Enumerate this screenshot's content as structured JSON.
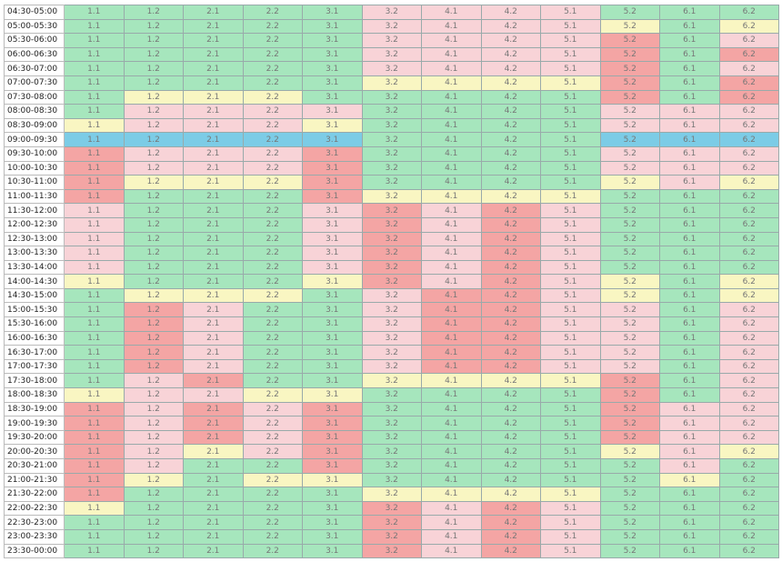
{
  "columns": [
    "1.1",
    "1.2",
    "2.1",
    "2.2",
    "3.1",
    "3.2",
    "4.1",
    "4.2",
    "5.1",
    "5.2",
    "6.1",
    "6.2"
  ],
  "palette": {
    "G": "#a6e6bd",
    "P": "#f8d3d7",
    "R": "#f4a5a4",
    "Y": "#f9f6c2",
    "B": "#7ccce6"
  },
  "rows": [
    {
      "time": "04:30-05:00",
      "cells": "GGGGGPPPPGGG"
    },
    {
      "time": "05:00-05:30",
      "cells": "GGGGGPPPPYGY"
    },
    {
      "time": "05:30-06:00",
      "cells": "GGGGGPPPPRGP"
    },
    {
      "time": "06:00-06:30",
      "cells": "GGGGGPPPPRGR"
    },
    {
      "time": "06:30-07:00",
      "cells": "GGGGGPPPPRGP"
    },
    {
      "time": "07:00-07:30",
      "cells": "GGGGGYYYYRGR"
    },
    {
      "time": "07:30-08:00",
      "cells": "GYYYGGGGGRGR"
    },
    {
      "time": "08:00-08:30",
      "cells": "GPPPPGGGGPPP"
    },
    {
      "time": "08:30-09:00",
      "cells": "YPPPYGGGGPPP"
    },
    {
      "time": "09:00-09:30",
      "cells": "BBBBBGGGGBBB"
    },
    {
      "time": "09:30-10:00",
      "cells": "RPPPRGGGGPPP"
    },
    {
      "time": "10:00-10:30",
      "cells": "RPPPRGGGGPPP"
    },
    {
      "time": "10:30-11:00",
      "cells": "RYYYRGGGGYPY"
    },
    {
      "time": "11:00-11:30",
      "cells": "RGGGRYYYYGGG"
    },
    {
      "time": "11:30-12:00",
      "cells": "PGGGPRPRPGGG"
    },
    {
      "time": "12:00-12:30",
      "cells": "PGGGPRPRPGGG"
    },
    {
      "time": "12:30-13:00",
      "cells": "PGGGPRPRPGGG"
    },
    {
      "time": "13:00-13:30",
      "cells": "PGGGPRPRPGGG"
    },
    {
      "time": "13:30-14:00",
      "cells": "PGGGPRPRPGGG"
    },
    {
      "time": "14:00-14:30",
      "cells": "YGGGYRPRPYGY"
    },
    {
      "time": "14:30-15:00",
      "cells": "GYYYGPRRPYGY"
    },
    {
      "time": "15:00-15:30",
      "cells": "GRPGGPRRPPGP"
    },
    {
      "time": "15:30-16:00",
      "cells": "GRPGGPRRPPGP"
    },
    {
      "time": "16:00-16:30",
      "cells": "GRPGGPRRPPGP"
    },
    {
      "time": "16:30-17:00",
      "cells": "GRPGGPRRPPGP"
    },
    {
      "time": "17:00-17:30",
      "cells": "GRPGGPRRPPGP"
    },
    {
      "time": "17:30-18:00",
      "cells": "GPRGGYYYYRGP"
    },
    {
      "time": "18:00-18:30",
      "cells": "YPPYYGGGGRGP"
    },
    {
      "time": "18:30-19:00",
      "cells": "RPRPRGGGGRPP"
    },
    {
      "time": "19:00-19:30",
      "cells": "RPRPRGGGGRPP"
    },
    {
      "time": "19:30-20:00",
      "cells": "RPRPRGGGGRPP"
    },
    {
      "time": "20:00-20:30",
      "cells": "RPYPRGGGGYPY"
    },
    {
      "time": "20:30-21:00",
      "cells": "RPGGRGGGGGPG"
    },
    {
      "time": "21:00-21:30",
      "cells": "RYGYYGGGGGYG"
    },
    {
      "time": "21:30-22:00",
      "cells": "RGGGGYYYYGGG"
    },
    {
      "time": "22:00-22:30",
      "cells": "YGGGGRPRPGGG"
    },
    {
      "time": "22:30-23:00",
      "cells": "GGGGGRPRPGGG"
    },
    {
      "time": "23:00-23:30",
      "cells": "GGGGGRPRPGGG"
    },
    {
      "time": "23:30-00:00",
      "cells": "GGGGGRPRPGGG"
    }
  ]
}
